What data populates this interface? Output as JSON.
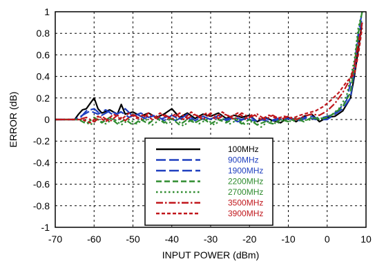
{
  "chart_data": {
    "type": "line",
    "title": "",
    "xlabel": "INPUT POWER (dBm)",
    "ylabel": "ERROR (dB)",
    "xlim": [
      -70,
      10
    ],
    "ylim": [
      -1,
      1
    ],
    "xticks": [
      -70,
      -60,
      -50,
      -40,
      -30,
      -20,
      -10,
      0,
      10
    ],
    "yticks": [
      -1,
      -0.8,
      -0.6,
      -0.4,
      -0.2,
      0,
      0.2,
      0.4,
      0.6,
      0.8,
      1
    ],
    "xtick_labels": [
      "-70",
      "-60",
      "-50",
      "-40",
      "-30",
      "-20",
      "-10",
      "0",
      "10"
    ],
    "ytick_labels": [
      "-1",
      "-0.8",
      "-0.6",
      "-0.4",
      "-0.2",
      "0",
      "0.2",
      "0.4",
      "0.6",
      "0.8",
      "1"
    ],
    "grid": true,
    "legend_position": "bottom-center",
    "series": [
      {
        "name": "100MHz",
        "color": "#000000",
        "dash": "solid",
        "points": [
          [
            -70,
            0
          ],
          [
            -65,
            0
          ],
          [
            -64,
            0.05
          ],
          [
            -63,
            0.09
          ],
          [
            -62,
            0.1
          ],
          [
            -61,
            0.15
          ],
          [
            -60,
            0.2
          ],
          [
            -59,
            0.1
          ],
          [
            -58,
            0.06
          ],
          [
            -56,
            0.09
          ],
          [
            -54,
            0.05
          ],
          [
            -53,
            0.14
          ],
          [
            -52,
            0.05
          ],
          [
            -50,
            0.07
          ],
          [
            -48,
            0.03
          ],
          [
            -46,
            0.06
          ],
          [
            -44,
            0.02
          ],
          [
            -42,
            0.05
          ],
          [
            -40,
            0.1
          ],
          [
            -38,
            0.02
          ],
          [
            -36,
            0.06
          ],
          [
            -34,
            0.01
          ],
          [
            -32,
            0.05
          ],
          [
            -30,
            0.03
          ],
          [
            -28,
            0.06
          ],
          [
            -26,
            0.01
          ],
          [
            -24,
            0.04
          ],
          [
            -22,
            0.02
          ],
          [
            -20,
            0.04
          ],
          [
            -18,
            -0.02
          ],
          [
            -16,
            0.02
          ],
          [
            -14,
            -0.01
          ],
          [
            -12,
            -0.03
          ],
          [
            -10,
            0.02
          ],
          [
            -8,
            -0.02
          ],
          [
            -6,
            0.03
          ],
          [
            -4,
            0.05
          ],
          [
            -2,
            -0.02
          ],
          [
            0,
            0.02
          ],
          [
            2,
            0.03
          ],
          [
            4,
            0.08
          ],
          [
            6,
            0.2
          ],
          [
            7,
            0.4
          ],
          [
            8,
            0.65
          ],
          [
            9,
            0.9
          ]
        ]
      },
      {
        "name": "900MHz",
        "color": "#1f3fbf",
        "dash": "long-dash",
        "points": [
          [
            -70,
            0
          ],
          [
            -64,
            0
          ],
          [
            -62,
            0.08
          ],
          [
            -60,
            0.1
          ],
          [
            -58,
            0.04
          ],
          [
            -56,
            0.08
          ],
          [
            -54,
            0.05
          ],
          [
            -52,
            0.1
          ],
          [
            -50,
            0.03
          ],
          [
            -48,
            0.06
          ],
          [
            -46,
            0.02
          ],
          [
            -44,
            0.04
          ],
          [
            -42,
            -0.01
          ],
          [
            -40,
            0.04
          ],
          [
            -38,
            0
          ],
          [
            -36,
            0.05
          ],
          [
            -34,
            -0.01
          ],
          [
            -32,
            0.03
          ],
          [
            -30,
            0
          ],
          [
            -28,
            0.04
          ],
          [
            -26,
            -0.01
          ],
          [
            -24,
            0.02
          ],
          [
            -22,
            0
          ],
          [
            -20,
            0.03
          ],
          [
            -18,
            -0.02
          ],
          [
            -16,
            0.01
          ],
          [
            -14,
            -0.01
          ],
          [
            -12,
            0
          ],
          [
            -10,
            0.01
          ],
          [
            -8,
            -0.01
          ],
          [
            -6,
            0.02
          ],
          [
            -4,
            0.03
          ],
          [
            -2,
            0
          ],
          [
            0,
            0
          ],
          [
            2,
            0.05
          ],
          [
            4,
            0.1
          ],
          [
            6,
            0.2
          ],
          [
            7,
            0.45
          ],
          [
            8,
            0.75
          ],
          [
            9,
            0.95
          ]
        ]
      },
      {
        "name": "1900MHz",
        "color": "#1f3fbf",
        "dash": "long-dash",
        "points": [
          [
            -70,
            0
          ],
          [
            -65,
            0
          ],
          [
            -63,
            0.04
          ],
          [
            -61,
            0.08
          ],
          [
            -59,
            0.05
          ],
          [
            -57,
            0.09
          ],
          [
            -55,
            0.04
          ],
          [
            -53,
            0.07
          ],
          [
            -51,
            0.02
          ],
          [
            -49,
            0.05
          ],
          [
            -47,
            0.01
          ],
          [
            -45,
            0.04
          ],
          [
            -43,
            0
          ],
          [
            -41,
            0.03
          ],
          [
            -39,
            -0.01
          ],
          [
            -37,
            0.03
          ],
          [
            -35,
            0
          ],
          [
            -33,
            0.02
          ],
          [
            -31,
            -0.01
          ],
          [
            -29,
            0.02
          ],
          [
            -27,
            0
          ],
          [
            -25,
            0.01
          ],
          [
            -23,
            -0.02
          ],
          [
            -21,
            0.01
          ],
          [
            -19,
            -0.01
          ],
          [
            -17,
            0
          ],
          [
            -15,
            -0.02
          ],
          [
            -13,
            0.01
          ],
          [
            -11,
            0
          ],
          [
            -9,
            0.01
          ],
          [
            -7,
            -0.01
          ],
          [
            -5,
            0.02
          ],
          [
            -3,
            0
          ],
          [
            -1,
            0.02
          ],
          [
            1,
            0.04
          ],
          [
            3,
            0.09
          ],
          [
            5,
            0.18
          ],
          [
            7,
            0.5
          ],
          [
            8,
            0.8
          ],
          [
            9,
            1
          ]
        ]
      },
      {
        "name": "2200MHz",
        "color": "#2e8b2e",
        "dash": "dash",
        "points": [
          [
            -70,
            0
          ],
          [
            -64,
            0
          ],
          [
            -62,
            -0.04
          ],
          [
            -60,
            0.02
          ],
          [
            -58,
            -0.03
          ],
          [
            -56,
            0.02
          ],
          [
            -54,
            -0.04
          ],
          [
            -52,
            0
          ],
          [
            -50,
            -0.05
          ],
          [
            -48,
            0
          ],
          [
            -46,
            -0.04
          ],
          [
            -44,
            0.02
          ],
          [
            -42,
            -0.03
          ],
          [
            -40,
            0.01
          ],
          [
            -38,
            -0.05
          ],
          [
            -36,
            0
          ],
          [
            -34,
            -0.03
          ],
          [
            -32,
            0.01
          ],
          [
            -30,
            -0.04
          ],
          [
            -28,
            0
          ],
          [
            -26,
            -0.03
          ],
          [
            -24,
            0.01
          ],
          [
            -22,
            -0.04
          ],
          [
            -20,
            0
          ],
          [
            -18,
            -0.05
          ],
          [
            -16,
            -0.02
          ],
          [
            -14,
            -0.04
          ],
          [
            -12,
            0
          ],
          [
            -10,
            -0.02
          ],
          [
            -8,
            0.01
          ],
          [
            -6,
            -0.02
          ],
          [
            -4,
            0.02
          ],
          [
            -2,
            0
          ],
          [
            0,
            0.02
          ],
          [
            2,
            0.06
          ],
          [
            4,
            0.12
          ],
          [
            6,
            0.25
          ],
          [
            7,
            0.5
          ],
          [
            8,
            0.8
          ],
          [
            9,
            1
          ]
        ]
      },
      {
        "name": "2700MHz",
        "color": "#2e8b2e",
        "dash": "dot",
        "points": [
          [
            -70,
            0
          ],
          [
            -63,
            0
          ],
          [
            -61,
            -0.05
          ],
          [
            -59,
            0
          ],
          [
            -57,
            -0.04
          ],
          [
            -55,
            0.01
          ],
          [
            -53,
            -0.05
          ],
          [
            -51,
            0
          ],
          [
            -49,
            -0.04
          ],
          [
            -47,
            0.01
          ],
          [
            -45,
            -0.05
          ],
          [
            -43,
            0
          ],
          [
            -41,
            -0.04
          ],
          [
            -39,
            0.01
          ],
          [
            -37,
            -0.06
          ],
          [
            -35,
            0
          ],
          [
            -33,
            -0.04
          ],
          [
            -31,
            0
          ],
          [
            -29,
            -0.05
          ],
          [
            -27,
            0.01
          ],
          [
            -25,
            -0.04
          ],
          [
            -23,
            0
          ],
          [
            -21,
            -0.05
          ],
          [
            -19,
            -0.01
          ],
          [
            -17,
            -0.07
          ],
          [
            -15,
            -0.01
          ],
          [
            -13,
            -0.04
          ],
          [
            -11,
            0
          ],
          [
            -9,
            -0.02
          ],
          [
            -7,
            0.01
          ],
          [
            -5,
            -0.01
          ],
          [
            -3,
            0.02
          ],
          [
            -1,
            0.01
          ],
          [
            1,
            0.04
          ],
          [
            3,
            0.1
          ],
          [
            5,
            0.22
          ],
          [
            7,
            0.55
          ],
          [
            8,
            0.85
          ],
          [
            9,
            1
          ]
        ]
      },
      {
        "name": "3500MHz",
        "color": "#c0161b",
        "dash": "dash-dot",
        "points": [
          [
            -70,
            0
          ],
          [
            -64,
            0
          ],
          [
            -62,
            0.02
          ],
          [
            -60,
            -0.02
          ],
          [
            -58,
            0.03
          ],
          [
            -56,
            -0.02
          ],
          [
            -54,
            0.04
          ],
          [
            -52,
            -0.01
          ],
          [
            -50,
            0.05
          ],
          [
            -48,
            0
          ],
          [
            -46,
            0.06
          ],
          [
            -44,
            0.01
          ],
          [
            -42,
            0.05
          ],
          [
            -40,
            0
          ],
          [
            -38,
            0.06
          ],
          [
            -36,
            0.01
          ],
          [
            -34,
            0.05
          ],
          [
            -32,
            0
          ],
          [
            -30,
            0.06
          ],
          [
            -28,
            0.01
          ],
          [
            -26,
            0.05
          ],
          [
            -24,
            0
          ],
          [
            -22,
            0.06
          ],
          [
            -20,
            0.02
          ],
          [
            -18,
            0.05
          ],
          [
            -16,
            0
          ],
          [
            -14,
            0.04
          ],
          [
            -12,
            0
          ],
          [
            -10,
            0.03
          ],
          [
            -8,
            0
          ],
          [
            -6,
            0.03
          ],
          [
            -4,
            0.05
          ],
          [
            -2,
            0.04
          ],
          [
            0,
            0.08
          ],
          [
            2,
            0.15
          ],
          [
            4,
            0.25
          ],
          [
            6,
            0.38
          ],
          [
            7,
            0.5
          ],
          [
            8,
            0.7
          ],
          [
            9,
            0.9
          ]
        ]
      },
      {
        "name": "3900MHz",
        "color": "#c0161b",
        "dash": "short-dash",
        "points": [
          [
            -70,
            0
          ],
          [
            -63,
            0
          ],
          [
            -61,
            -0.03
          ],
          [
            -59,
            0.03
          ],
          [
            -57,
            -0.02
          ],
          [
            -55,
            0.05
          ],
          [
            -53,
            0
          ],
          [
            -51,
            0.06
          ],
          [
            -49,
            0.01
          ],
          [
            -47,
            0.05
          ],
          [
            -45,
            0
          ],
          [
            -43,
            0.06
          ],
          [
            -41,
            0.01
          ],
          [
            -39,
            0.05
          ],
          [
            -37,
            0
          ],
          [
            -35,
            0.07
          ],
          [
            -33,
            0.02
          ],
          [
            -31,
            0.06
          ],
          [
            -29,
            0.01
          ],
          [
            -27,
            0.07
          ],
          [
            -25,
            0.02
          ],
          [
            -23,
            0.06
          ],
          [
            -21,
            0.01
          ],
          [
            -19,
            0.05
          ],
          [
            -17,
            0
          ],
          [
            -15,
            0.04
          ],
          [
            -13,
            0.01
          ],
          [
            -11,
            0.03
          ],
          [
            -9,
            0.01
          ],
          [
            -7,
            0.04
          ],
          [
            -5,
            0.06
          ],
          [
            -3,
            0.08
          ],
          [
            -1,
            0.12
          ],
          [
            1,
            0.18
          ],
          [
            3,
            0.25
          ],
          [
            5,
            0.35
          ],
          [
            7,
            0.42
          ],
          [
            8,
            0.6
          ],
          [
            9,
            0.85
          ]
        ]
      }
    ]
  }
}
